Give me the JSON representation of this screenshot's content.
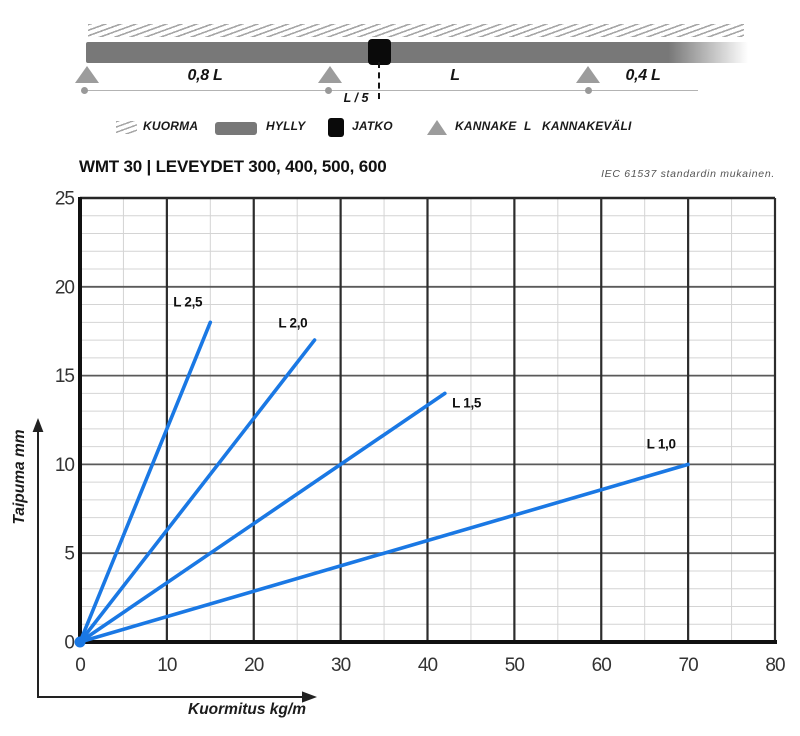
{
  "diagram": {
    "spans": {
      "left": "0,8 L",
      "middle": "L",
      "right": "0,4 L",
      "joint_offset": "L / 5"
    },
    "legend": [
      {
        "icon": "hatch-icon",
        "label": "KUORMA"
      },
      {
        "icon": "beam-icon",
        "label": "HYLLY"
      },
      {
        "icon": "joint-icon",
        "label": "JATKO"
      },
      {
        "icon": "support-icon",
        "label": "KANNAKE"
      },
      {
        "icon": "letter-symbol",
        "symbol": "L",
        "label": "KANNAKEVÄLI"
      }
    ],
    "colors": {
      "beam": "#787878",
      "support": "#9c9c9c",
      "joint": "#0a0a0a",
      "hatch": "#a6a6a6"
    }
  },
  "header": {
    "title": "WMT 30 | LEVEYDET 300, 400, 500, 600",
    "note": "IEC 61537 standardin mukainen."
  },
  "chart_data": {
    "type": "line",
    "title": "WMT 30 | LEVEYDET 300, 400, 500, 600",
    "xlabel": "Kuormitus kg/m",
    "ylabel": "Taipuma mm",
    "xlim": [
      0,
      80
    ],
    "ylim": [
      0,
      25
    ],
    "x_ticks": [
      0,
      10,
      20,
      30,
      40,
      50,
      60,
      70,
      80
    ],
    "y_ticks": [
      0,
      5,
      10,
      15,
      20,
      25
    ],
    "x_minor_step": 5,
    "y_minor_step": 1,
    "grid": true,
    "legend_position": "inline-labels",
    "line_color": "#1a78e4",
    "series": [
      {
        "name": "L 2,5",
        "points": [
          [
            0,
            0
          ],
          [
            15,
            18
          ]
        ],
        "label_pos": [
          12.4,
          18.9
        ]
      },
      {
        "name": "L 2,0",
        "points": [
          [
            0,
            0
          ],
          [
            27,
            17
          ]
        ],
        "label_pos": [
          24.5,
          17.7
        ]
      },
      {
        "name": "L 1,5",
        "points": [
          [
            0,
            0
          ],
          [
            42,
            14
          ]
        ],
        "label_pos": [
          44.5,
          13.2
        ]
      },
      {
        "name": "L 1,0",
        "points": [
          [
            0,
            0
          ],
          [
            70,
            10
          ]
        ],
        "label_pos": [
          66.9,
          10.9
        ]
      }
    ]
  }
}
